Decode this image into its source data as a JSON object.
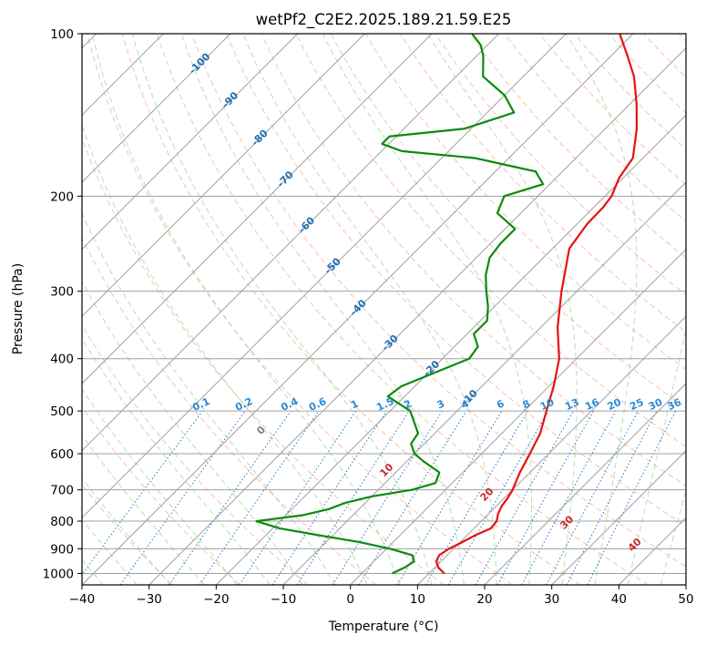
{
  "chart_data": {
    "type": "line",
    "subtype": "skew-t log-p",
    "title": "wetPf2_C2E2.2025.189.21.59.E25",
    "xlabel": "Temperature (°C)",
    "ylabel": "Pressure (hPa)",
    "xlim": [
      -40,
      50
    ],
    "ylim": [
      1050,
      100
    ],
    "y_scale": "log",
    "grid": true,
    "x_ticks": [
      -40,
      -30,
      -20,
      -10,
      0,
      10,
      20,
      30,
      40,
      50
    ],
    "x_tick_labels": [
      "−40",
      "−30",
      "−20",
      "−10",
      "0",
      "10",
      "20",
      "30",
      "40",
      "50"
    ],
    "y_ticks": [
      100,
      200,
      300,
      400,
      500,
      600,
      700,
      800,
      900,
      1000
    ],
    "y_tick_labels": [
      "100",
      "200",
      "300",
      "400",
      "500",
      "600",
      "700",
      "800",
      "900",
      "1000"
    ],
    "colors": {
      "temperature": "#e8110f",
      "dewpoint": "#0c8a0c",
      "isotherm": "#a0a0a0",
      "dry_adiabat": "#f7a889",
      "moist_adiabat": "#9acf9a",
      "mixing_ratio": "#1f77d4",
      "isotherm_label": "#1f6fb0",
      "mixing_label": "#2b8ad8",
      "moist_label_neg": "#808080",
      "moist_label_pos": "#c8282a"
    },
    "series": [
      {
        "name": "",
        "role": "temperature",
        "points": [
          [
            1000,
            12.3
          ],
          [
            975,
            10.5
          ],
          [
            950,
            9.3
          ],
          [
            925,
            8.8
          ],
          [
            900,
            9.3
          ],
          [
            875,
            10.3
          ],
          [
            850,
            11.2
          ],
          [
            825,
            12.5
          ],
          [
            800,
            12.3
          ],
          [
            775,
            11.4
          ],
          [
            750,
            10.8
          ],
          [
            725,
            10.5
          ],
          [
            700,
            10.0
          ],
          [
            650,
            8.5
          ],
          [
            600,
            7.2
          ],
          [
            550,
            5.7
          ],
          [
            500,
            3.3
          ],
          [
            450,
            0.7
          ],
          [
            400,
            -2.6
          ],
          [
            350,
            -7.5
          ],
          [
            300,
            -12.3
          ],
          [
            250,
            -17.5
          ],
          [
            225,
            -18.5
          ],
          [
            210,
            -18.6
          ],
          [
            200,
            -19.0
          ],
          [
            185,
            -20.6
          ],
          [
            170,
            -21.5
          ],
          [
            150,
            -25.3
          ],
          [
            135,
            -29.0
          ],
          [
            120,
            -33.5
          ],
          [
            110,
            -37.5
          ],
          [
            100,
            -42.0
          ]
        ]
      },
      {
        "name": "",
        "role": "dewpoint",
        "points": [
          [
            1000,
            4.5
          ],
          [
            975,
            5.5
          ],
          [
            950,
            6.0
          ],
          [
            925,
            4.8
          ],
          [
            900,
            0.5
          ],
          [
            875,
            -5.0
          ],
          [
            850,
            -12.0
          ],
          [
            825,
            -19.0
          ],
          [
            800,
            -23.5
          ],
          [
            780,
            -17.5
          ],
          [
            760,
            -14.5
          ],
          [
            740,
            -13.0
          ],
          [
            720,
            -10.0
          ],
          [
            700,
            -5.0
          ],
          [
            680,
            -2.5
          ],
          [
            650,
            -3.5
          ],
          [
            620,
            -7.5
          ],
          [
            600,
            -10.0
          ],
          [
            575,
            -12.0
          ],
          [
            550,
            -12.5
          ],
          [
            500,
            -17.0
          ],
          [
            470,
            -22.5
          ],
          [
            450,
            -22.0
          ],
          [
            420,
            -18.5
          ],
          [
            400,
            -16.0
          ],
          [
            380,
            -16.5
          ],
          [
            360,
            -19.0
          ],
          [
            340,
            -19.0
          ],
          [
            320,
            -21.0
          ],
          [
            300,
            -23.5
          ],
          [
            280,
            -26.0
          ],
          [
            260,
            -28.0
          ],
          [
            245,
            -28.5
          ],
          [
            230,
            -28.5
          ],
          [
            215,
            -33.5
          ],
          [
            200,
            -35.0
          ],
          [
            190,
            -31.0
          ],
          [
            180,
            -34.0
          ],
          [
            170,
            -45.0
          ],
          [
            165,
            -57.0
          ],
          [
            160,
            -61.0
          ],
          [
            155,
            -61.0
          ],
          [
            150,
            -51.0
          ],
          [
            140,
            -46.0
          ],
          [
            130,
            -50.0
          ],
          [
            120,
            -56.0
          ],
          [
            110,
            -59.0
          ],
          [
            105,
            -61.0
          ],
          [
            100,
            -64.0
          ]
        ]
      }
    ],
    "isotherm_labels": [
      {
        "text": "-100",
        "t": -100
      },
      {
        "text": "-90",
        "t": -90
      },
      {
        "text": "-80",
        "t": -80
      },
      {
        "text": "-70",
        "t": -70
      },
      {
        "text": "-60",
        "t": -60
      },
      {
        "text": "-50",
        "t": -50
      },
      {
        "text": "-40",
        "t": -40
      },
      {
        "text": "-30",
        "t": -30
      },
      {
        "text": "-20",
        "t": -20
      },
      {
        "text": "-10",
        "t": -10
      }
    ],
    "mixing_ratio_labels": [
      "0.1",
      "0.2",
      "0.4",
      "0.6",
      "1",
      "1.5",
      "2",
      "3",
      "4",
      "6",
      "8",
      "10",
      "13",
      "16",
      "20",
      "25",
      "30",
      "36"
    ],
    "moist_adiabat_labels": [
      "0",
      "10",
      "20",
      "30",
      "40"
    ]
  }
}
